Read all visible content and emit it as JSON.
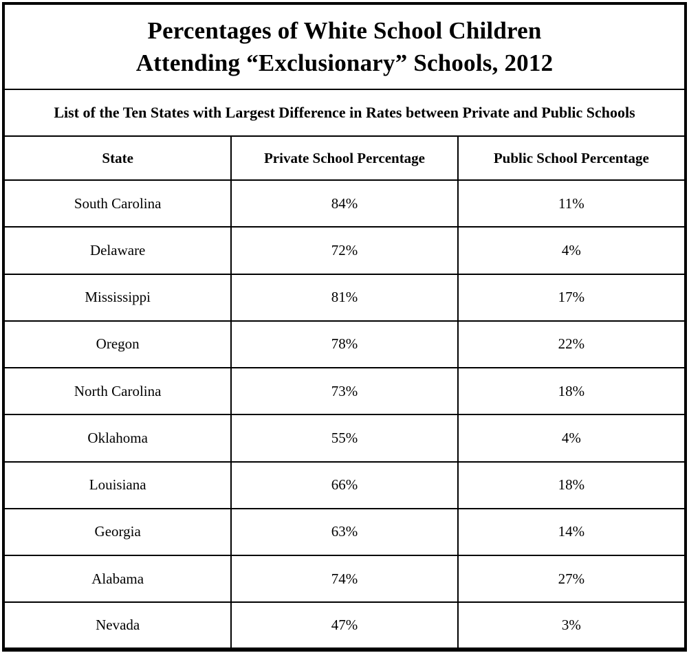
{
  "title": {
    "line1": "Percentages of White School Children",
    "line2": "Attending “Exclusionary” Schools, 2012"
  },
  "subtitle": "List of the Ten States with Largest Difference in Rates between Private and Public Schools",
  "table": {
    "columns": {
      "state": "State",
      "private": "Private School Percentage",
      "public": "Public School Percentage"
    },
    "rows": [
      {
        "state": "South Carolina",
        "private": "84%",
        "public": "11%"
      },
      {
        "state": "Delaware",
        "private": "72%",
        "public": "4%"
      },
      {
        "state": "Mississippi",
        "private": "81%",
        "public": "17%"
      },
      {
        "state": "Oregon",
        "private": "78%",
        "public": "22%"
      },
      {
        "state": "North Carolina",
        "private": "73%",
        "public": "18%"
      },
      {
        "state": "Oklahoma",
        "private": "55%",
        "public": "4%"
      },
      {
        "state": "Louisiana",
        "private": "66%",
        "public": "18%"
      },
      {
        "state": "Georgia",
        "private": "63%",
        "public": "14%"
      },
      {
        "state": "Alabama",
        "private": "74%",
        "public": "27%"
      },
      {
        "state": "Nevada",
        "private": "47%",
        "public": "3%"
      }
    ]
  },
  "colors": {
    "background": "#ffffff",
    "border": "#000000",
    "text": "#000000"
  },
  "chart_data": {
    "type": "table",
    "title": "Percentages of White School Children Attending “Exclusionary” Schools, 2012",
    "subtitle": "List of the Ten States with Largest Difference in Rates between Private and Public Schools",
    "columns": [
      "State",
      "Private School Percentage",
      "Public School Percentage"
    ],
    "units": "percent",
    "rows": [
      [
        "South Carolina",
        84,
        11
      ],
      [
        "Delaware",
        72,
        4
      ],
      [
        "Mississippi",
        81,
        17
      ],
      [
        "Oregon",
        78,
        22
      ],
      [
        "North Carolina",
        73,
        18
      ],
      [
        "Oklahoma",
        55,
        4
      ],
      [
        "Louisiana",
        66,
        18
      ],
      [
        "Georgia",
        63,
        14
      ],
      [
        "Alabama",
        74,
        27
      ],
      [
        "Nevada",
        47,
        3
      ]
    ]
  }
}
